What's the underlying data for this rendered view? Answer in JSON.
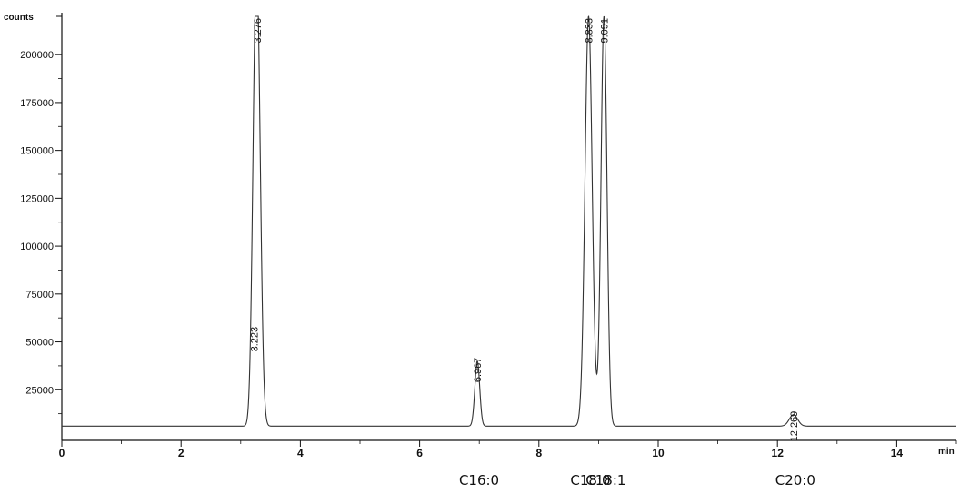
{
  "chart_data": {
    "type": "line",
    "ylabel": "counts",
    "xlabel": "min",
    "xlim": [
      0,
      15
    ],
    "ylim": [
      0,
      220000
    ],
    "baseline": 6000,
    "x_ticks": [
      "0",
      "2",
      "4",
      "6",
      "8",
      "10",
      "12",
      "14"
    ],
    "y_ticks": [
      "25000",
      "50000",
      "75000",
      "100000",
      "125000",
      "150000",
      "175000",
      "200000"
    ],
    "peaks": [
      {
        "rt": 3.223,
        "label": "3.223",
        "height": 56000,
        "width": 0.045
      },
      {
        "rt": 3.276,
        "label": "3.276",
        "height": 220000,
        "width": 0.055
      },
      {
        "rt": 6.967,
        "label": "6.967",
        "height": 40000,
        "width": 0.04
      },
      {
        "rt": 8.833,
        "label": "8.833",
        "height": 220000,
        "width": 0.06
      },
      {
        "rt": 9.091,
        "label": "9.091",
        "height": 220000,
        "width": 0.05
      },
      {
        "rt": 12.269,
        "label": "12.269",
        "height": 12000,
        "width": 0.07
      }
    ],
    "components": [
      {
        "label": "C16:0",
        "x": 6.967
      },
      {
        "label": "C18:0",
        "x": 8.833
      },
      {
        "label": "C18:1",
        "x": 9.091
      },
      {
        "label": "C20:0",
        "x": 12.269
      }
    ]
  },
  "colors": {
    "trace": "#333333",
    "axis": "#111111"
  }
}
